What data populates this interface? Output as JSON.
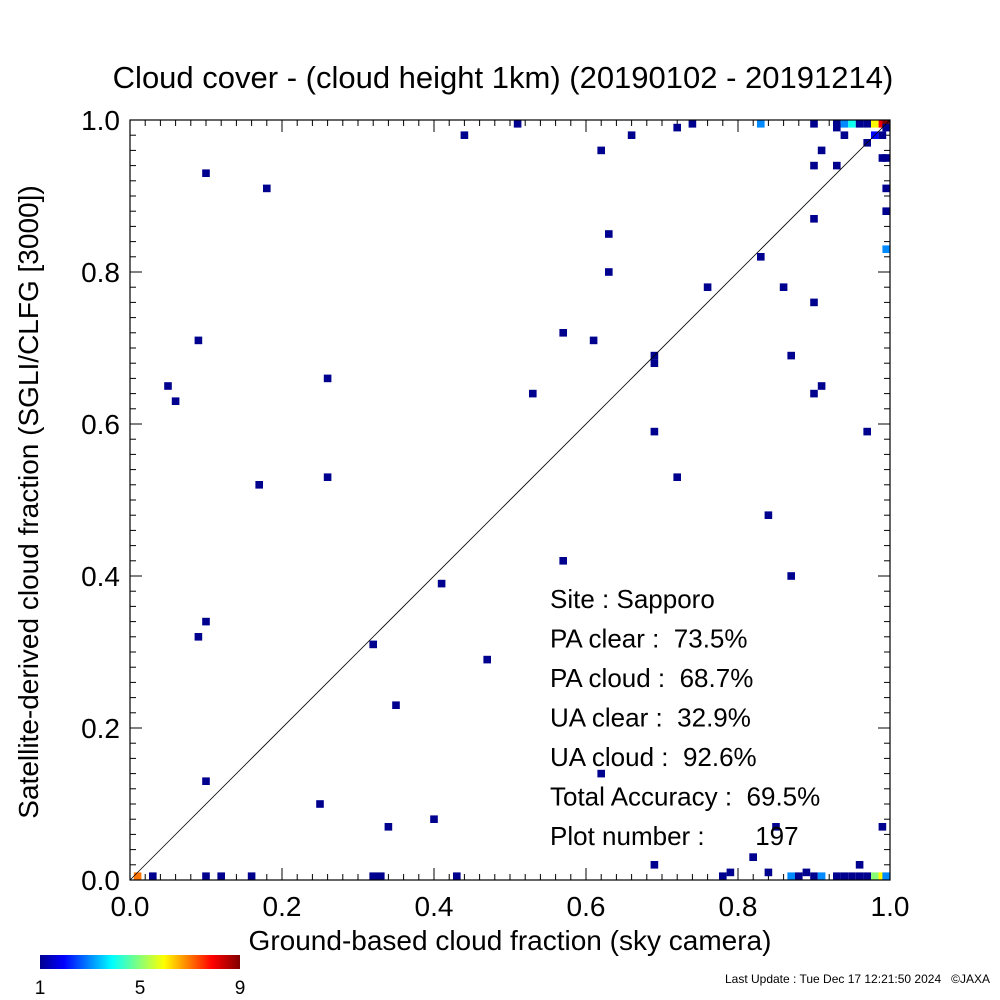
{
  "chart_data": {
    "type": "heatmap",
    "title": "Cloud cover - (cloud height 1km)  (20190102 - 20191214)",
    "xlabel": "Ground-based cloud fraction (sky camera)",
    "ylabel": "Satellite-derived cloud fraction (SGLI/CLFG [3000])",
    "xlim": [
      0,
      1
    ],
    "ylim": [
      0,
      1
    ],
    "x_ticks": [
      "0.0",
      "0.2",
      "0.4",
      "0.6",
      "0.8",
      "1.0"
    ],
    "y_ticks": [
      "0.0",
      "0.2",
      "0.4",
      "0.6",
      "0.8",
      "1.0"
    ],
    "diagonal_line": true,
    "grid": false,
    "colorbar": {
      "min": 1,
      "max": 9,
      "labels": [
        "1",
        "5",
        "9"
      ]
    },
    "stats": [
      "Site : Sapporo",
      "PA clear :  73.5%",
      "PA cloud :  68.7%",
      "UA clear :  32.9%",
      "UA cloud :  92.6%",
      "Total Accuracy :  69.5%",
      "Plot number :       197"
    ],
    "points": [
      [
        0.51,
        1.0,
        1
      ],
      [
        0.44,
        0.98,
        1
      ],
      [
        0.1,
        0.93,
        1
      ],
      [
        0.18,
        0.91,
        1
      ],
      [
        0.62,
        0.96,
        1
      ],
      [
        0.66,
        0.98,
        1
      ],
      [
        0.72,
        0.99,
        1
      ],
      [
        0.74,
        1.0,
        1
      ],
      [
        0.83,
        1.0,
        3
      ],
      [
        0.9,
        1.0,
        1
      ],
      [
        0.93,
        1.0,
        1
      ],
      [
        0.94,
        1.0,
        3
      ],
      [
        0.95,
        1.0,
        4
      ],
      [
        0.96,
        1.0,
        1
      ],
      [
        0.97,
        1.0,
        1
      ],
      [
        0.98,
        1.0,
        6
      ],
      [
        0.99,
        1.0,
        8
      ],
      [
        1.0,
        1.0,
        9
      ],
      [
        0.93,
        0.99,
        1
      ],
      [
        0.94,
        0.98,
        1
      ],
      [
        0.97,
        0.97,
        1
      ],
      [
        0.98,
        0.98,
        2
      ],
      [
        0.99,
        0.98,
        1
      ],
      [
        1.0,
        0.99,
        1
      ],
      [
        0.91,
        0.96,
        1
      ],
      [
        0.99,
        0.95,
        1
      ],
      [
        1.0,
        0.95,
        1
      ],
      [
        0.9,
        0.94,
        1
      ],
      [
        0.93,
        0.94,
        1
      ],
      [
        1.0,
        0.91,
        1
      ],
      [
        1.0,
        0.88,
        1
      ],
      [
        0.9,
        0.87,
        1
      ],
      [
        0.63,
        0.85,
        1
      ],
      [
        1.0,
        0.83,
        3
      ],
      [
        0.83,
        0.82,
        1
      ],
      [
        0.63,
        0.8,
        1
      ],
      [
        0.76,
        0.78,
        1
      ],
      [
        0.86,
        0.78,
        1
      ],
      [
        0.9,
        0.76,
        1
      ],
      [
        0.57,
        0.72,
        1
      ],
      [
        0.61,
        0.71,
        1
      ],
      [
        0.09,
        0.71,
        1
      ],
      [
        0.69,
        0.69,
        1
      ],
      [
        0.69,
        0.68,
        1
      ],
      [
        0.87,
        0.69,
        1
      ],
      [
        0.26,
        0.66,
        1
      ],
      [
        0.05,
        0.65,
        1
      ],
      [
        0.91,
        0.65,
        1
      ],
      [
        0.06,
        0.63,
        1
      ],
      [
        0.53,
        0.64,
        1
      ],
      [
        0.9,
        0.64,
        1
      ],
      [
        0.69,
        0.59,
        1
      ],
      [
        0.97,
        0.59,
        1
      ],
      [
        0.26,
        0.53,
        1
      ],
      [
        0.72,
        0.53,
        1
      ],
      [
        0.17,
        0.52,
        1
      ],
      [
        0.84,
        0.48,
        1
      ],
      [
        0.57,
        0.42,
        1
      ],
      [
        0.87,
        0.4,
        1
      ],
      [
        0.41,
        0.39,
        1
      ],
      [
        0.1,
        0.34,
        1
      ],
      [
        0.09,
        0.32,
        1
      ],
      [
        0.32,
        0.31,
        1
      ],
      [
        0.47,
        0.29,
        1
      ],
      [
        0.35,
        0.23,
        1
      ],
      [
        0.62,
        0.14,
        1
      ],
      [
        0.1,
        0.13,
        1
      ],
      [
        0.25,
        0.1,
        1
      ],
      [
        0.4,
        0.08,
        1
      ],
      [
        0.34,
        0.07,
        1
      ],
      [
        0.85,
        0.07,
        1
      ],
      [
        0.99,
        0.07,
        1
      ],
      [
        0.82,
        0.03,
        1
      ],
      [
        0.69,
        0.02,
        1
      ],
      [
        0.82,
        0.03,
        1
      ],
      [
        0.96,
        0.02,
        1
      ],
      [
        0.79,
        0.01,
        1
      ],
      [
        0.84,
        0.01,
        1
      ],
      [
        0.89,
        0.01,
        1
      ],
      [
        0.01,
        0.0,
        7
      ],
      [
        0.03,
        0.0,
        1
      ],
      [
        0.1,
        0.0,
        1
      ],
      [
        0.12,
        0.0,
        1
      ],
      [
        0.16,
        0.0,
        1
      ],
      [
        0.32,
        0.0,
        1
      ],
      [
        0.33,
        0.0,
        1
      ],
      [
        0.43,
        0.0,
        1
      ],
      [
        0.78,
        0.0,
        1
      ],
      [
        0.87,
        0.0,
        3
      ],
      [
        0.88,
        0.0,
        1
      ],
      [
        0.9,
        0.0,
        1
      ],
      [
        0.91,
        0.0,
        3
      ],
      [
        0.93,
        0.0,
        1
      ],
      [
        0.94,
        0.0,
        1
      ],
      [
        0.95,
        0.0,
        1
      ],
      [
        0.96,
        0.0,
        1
      ],
      [
        0.97,
        0.0,
        1
      ],
      [
        0.98,
        0.0,
        5
      ],
      [
        0.99,
        0.0,
        6
      ],
      [
        1.0,
        0.0,
        3
      ]
    ]
  },
  "footer": {
    "last_update": "Last Update : Tue Dec 17 12:21:50 2024",
    "copyright": "©JAXA"
  }
}
